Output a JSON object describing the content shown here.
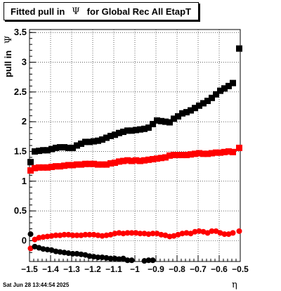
{
  "title": {
    "prefix": "Fitted pull in",
    "symbol": "Ψ",
    "suffix": "for Global Rec All EtapT"
  },
  "datestamp": "Sat Jun 28 13:44:54 2025",
  "chart_data": {
    "type": "scatter",
    "xlabel": "η",
    "ylabel": "pull in",
    "ylabel_symbol": "Ψ",
    "xlim": [
      -1.5,
      -0.5
    ],
    "ylim": [
      -0.35,
      3.55
    ],
    "x_ticks": [
      -1.5,
      -1.4,
      -1.3,
      -1.2,
      -1.1,
      -1,
      -0.9,
      -0.8,
      -0.7,
      -0.6,
      -0.5
    ],
    "x_tick_labels": [
      "−1.5",
      "−1.4",
      "−1.3",
      "−1.2",
      "−1.1",
      "−1",
      "−0.9",
      "−0.8",
      "−0.7",
      "−0.6",
      "−0.5"
    ],
    "y_ticks": [
      0,
      0.5,
      1,
      1.5,
      2,
      2.5,
      3,
      3.5
    ],
    "y_tick_labels": [
      "0",
      "0.5",
      "1",
      "1.5",
      "2",
      "2.5",
      "3",
      "3.5"
    ],
    "grid": true,
    "series": [
      {
        "color": "#000000",
        "marker": "square",
        "points": [
          [
            -1.495,
            1.32
          ],
          [
            -1.475,
            1.5
          ],
          [
            -1.455,
            1.51
          ],
          [
            -1.435,
            1.52
          ],
          [
            -1.415,
            1.52
          ],
          [
            -1.395,
            1.54
          ],
          [
            -1.375,
            1.56
          ],
          [
            -1.355,
            1.57
          ],
          [
            -1.335,
            1.57
          ],
          [
            -1.315,
            1.56
          ],
          [
            -1.295,
            1.56
          ],
          [
            -1.275,
            1.6
          ],
          [
            -1.255,
            1.63
          ],
          [
            -1.235,
            1.66
          ],
          [
            -1.215,
            1.66
          ],
          [
            -1.195,
            1.67
          ],
          [
            -1.175,
            1.68
          ],
          [
            -1.155,
            1.7
          ],
          [
            -1.135,
            1.73
          ],
          [
            -1.115,
            1.76
          ],
          [
            -1.095,
            1.78
          ],
          [
            -1.075,
            1.81
          ],
          [
            -1.055,
            1.83
          ],
          [
            -1.035,
            1.85
          ],
          [
            -1.015,
            1.85
          ],
          [
            -0.995,
            1.86
          ],
          [
            -0.975,
            1.87
          ],
          [
            -0.955,
            1.88
          ],
          [
            -0.935,
            1.9
          ],
          [
            -0.915,
            1.96
          ],
          [
            -0.895,
            2.02
          ],
          [
            -0.875,
            2.01
          ],
          [
            -0.855,
            2.0
          ],
          [
            -0.835,
            1.99
          ],
          [
            -0.815,
            2.05
          ],
          [
            -0.795,
            2.09
          ],
          [
            -0.775,
            2.14
          ],
          [
            -0.755,
            2.16
          ],
          [
            -0.735,
            2.19
          ],
          [
            -0.715,
            2.23
          ],
          [
            -0.695,
            2.27
          ],
          [
            -0.675,
            2.31
          ],
          [
            -0.655,
            2.35
          ],
          [
            -0.635,
            2.4
          ],
          [
            -0.615,
            2.46
          ],
          [
            -0.595,
            2.52
          ],
          [
            -0.575,
            2.56
          ],
          [
            -0.555,
            2.6
          ],
          [
            -0.535,
            2.65
          ],
          [
            -0.505,
            3.23
          ]
        ]
      },
      {
        "color": "#ff0000",
        "marker": "square",
        "points": [
          [
            -1.495,
            1.18
          ],
          [
            -1.475,
            1.22
          ],
          [
            -1.455,
            1.23
          ],
          [
            -1.435,
            1.23
          ],
          [
            -1.415,
            1.23
          ],
          [
            -1.395,
            1.24
          ],
          [
            -1.375,
            1.25
          ],
          [
            -1.355,
            1.25
          ],
          [
            -1.335,
            1.26
          ],
          [
            -1.315,
            1.27
          ],
          [
            -1.295,
            1.27
          ],
          [
            -1.275,
            1.28
          ],
          [
            -1.255,
            1.28
          ],
          [
            -1.235,
            1.29
          ],
          [
            -1.215,
            1.29
          ],
          [
            -1.195,
            1.29
          ],
          [
            -1.175,
            1.28
          ],
          [
            -1.155,
            1.28
          ],
          [
            -1.135,
            1.28
          ],
          [
            -1.115,
            1.3
          ],
          [
            -1.095,
            1.31
          ],
          [
            -1.075,
            1.33
          ],
          [
            -1.055,
            1.34
          ],
          [
            -1.035,
            1.35
          ],
          [
            -1.015,
            1.34
          ],
          [
            -0.995,
            1.35
          ],
          [
            -0.975,
            1.34
          ],
          [
            -0.955,
            1.35
          ],
          [
            -0.935,
            1.36
          ],
          [
            -0.915,
            1.37
          ],
          [
            -0.895,
            1.38
          ],
          [
            -0.875,
            1.39
          ],
          [
            -0.855,
            1.4
          ],
          [
            -0.835,
            1.43
          ],
          [
            -0.815,
            1.44
          ],
          [
            -0.795,
            1.44
          ],
          [
            -0.775,
            1.44
          ],
          [
            -0.755,
            1.44
          ],
          [
            -0.735,
            1.45
          ],
          [
            -0.715,
            1.46
          ],
          [
            -0.695,
            1.47
          ],
          [
            -0.675,
            1.46
          ],
          [
            -0.655,
            1.46
          ],
          [
            -0.635,
            1.47
          ],
          [
            -0.615,
            1.48
          ],
          [
            -0.595,
            1.48
          ],
          [
            -0.575,
            1.49
          ],
          [
            -0.555,
            1.5
          ],
          [
            -0.535,
            1.49
          ],
          [
            -0.505,
            1.56
          ]
        ]
      },
      {
        "color": "#ff0000",
        "marker": "circle",
        "points": [
          [
            -1.495,
            -0.13
          ],
          [
            -1.475,
            0.02
          ],
          [
            -1.455,
            0.05
          ],
          [
            -1.435,
            0.06
          ],
          [
            -1.415,
            0.07
          ],
          [
            -1.395,
            0.08
          ],
          [
            -1.375,
            0.09
          ],
          [
            -1.355,
            0.09
          ],
          [
            -1.335,
            0.1
          ],
          [
            -1.315,
            0.1
          ],
          [
            -1.295,
            0.09
          ],
          [
            -1.275,
            0.09
          ],
          [
            -1.255,
            0.09
          ],
          [
            -1.235,
            0.1
          ],
          [
            -1.215,
            0.1
          ],
          [
            -1.195,
            0.1
          ],
          [
            -1.175,
            0.09
          ],
          [
            -1.155,
            0.08
          ],
          [
            -1.135,
            0.09
          ],
          [
            -1.115,
            0.1
          ],
          [
            -1.095,
            0.12
          ],
          [
            -1.075,
            0.13
          ],
          [
            -1.055,
            0.12
          ],
          [
            -1.035,
            0.13
          ],
          [
            -1.015,
            0.13
          ],
          [
            -0.995,
            0.13
          ],
          [
            -0.975,
            0.12
          ],
          [
            -0.955,
            0.12
          ],
          [
            -0.935,
            0.11
          ],
          [
            -0.915,
            0.12
          ],
          [
            -0.895,
            0.12
          ],
          [
            -0.875,
            0.1
          ],
          [
            -0.855,
            0.09
          ],
          [
            -0.835,
            0.07
          ],
          [
            -0.815,
            0.08
          ],
          [
            -0.795,
            0.1
          ],
          [
            -0.775,
            0.12
          ],
          [
            -0.755,
            0.13
          ],
          [
            -0.735,
            0.12
          ],
          [
            -0.715,
            0.15
          ],
          [
            -0.695,
            0.16
          ],
          [
            -0.675,
            0.15
          ],
          [
            -0.655,
            0.13
          ],
          [
            -0.635,
            0.16
          ],
          [
            -0.615,
            0.16
          ],
          [
            -0.595,
            0.13
          ],
          [
            -0.575,
            0.11
          ],
          [
            -0.555,
            0.11
          ],
          [
            -0.535,
            0.13
          ],
          [
            -0.505,
            0.16
          ]
        ]
      },
      {
        "color": "#000000",
        "marker": "circle",
        "points": [
          [
            -1.495,
            0.11
          ],
          [
            -1.475,
            -0.1
          ],
          [
            -1.455,
            -0.12
          ],
          [
            -1.435,
            -0.14
          ],
          [
            -1.415,
            -0.15
          ],
          [
            -1.395,
            -0.16
          ],
          [
            -1.375,
            -0.18
          ],
          [
            -1.355,
            -0.19
          ],
          [
            -1.335,
            -0.2
          ],
          [
            -1.315,
            -0.21
          ],
          [
            -1.295,
            -0.22
          ],
          [
            -1.275,
            -0.22
          ],
          [
            -1.255,
            -0.23
          ],
          [
            -1.235,
            -0.24
          ],
          [
            -1.215,
            -0.26
          ],
          [
            -1.195,
            -0.27
          ],
          [
            -1.175,
            -0.28
          ],
          [
            -1.155,
            -0.28
          ],
          [
            -1.135,
            -0.29
          ],
          [
            -1.115,
            -0.3
          ],
          [
            -1.095,
            -0.3
          ],
          [
            -1.075,
            -0.31
          ],
          [
            -1.055,
            -0.3
          ],
          [
            -1.035,
            -0.33
          ],
          [
            -1.015,
            -0.33
          ],
          [
            -0.955,
            -0.34
          ],
          [
            -0.935,
            -0.33
          ],
          [
            -0.915,
            -0.33
          ]
        ]
      }
    ]
  }
}
